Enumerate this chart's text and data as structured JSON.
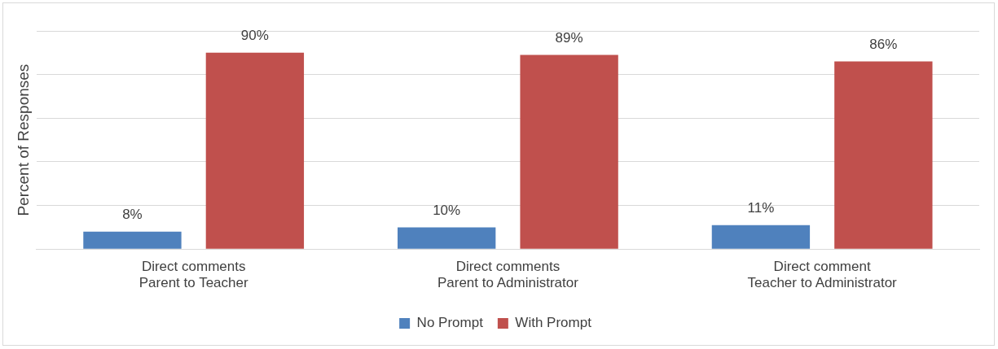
{
  "chart_data": {
    "type": "bar",
    "ylabel": "Percent of Responses",
    "categories": [
      "Direct comments\nParent to Teacher",
      "Direct comments\nParent to Administrator",
      "Direct comment\nTeacher to Administrator"
    ],
    "series": [
      {
        "name": "No Prompt",
        "color": "#4f81bd",
        "values": [
          8,
          10,
          11
        ],
        "value_labels": [
          "8%",
          "10%",
          "11%"
        ]
      },
      {
        "name": "With Prompt",
        "color": "#c0504d",
        "values": [
          90,
          89,
          86
        ],
        "value_labels": [
          "90%",
          "89%",
          "86%"
        ]
      }
    ],
    "ylim": [
      0,
      100
    ],
    "yticks": [
      0,
      20,
      40,
      60,
      80,
      100
    ],
    "grid": "y",
    "tick_labels": "x",
    "legend": "bottom"
  }
}
